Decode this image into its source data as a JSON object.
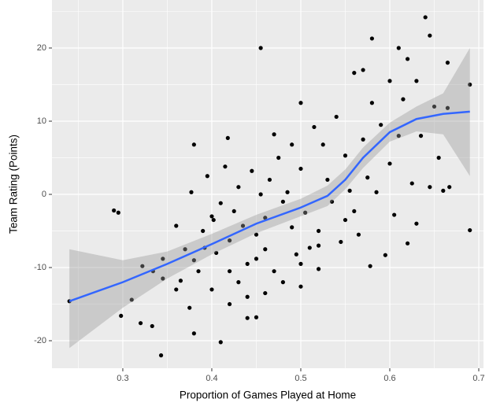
{
  "chart_data": {
    "type": "scatter",
    "xlabel": "Proportion of Games Played at Home",
    "ylabel": "Team Rating (Points)",
    "xlim": [
      0.2204,
      0.7053
    ],
    "ylim": [
      -23.76,
      26.56
    ],
    "xticks": [
      0.3,
      0.4,
      0.5,
      0.6,
      0.7
    ],
    "yticks": [
      -20,
      -10,
      0,
      10,
      20
    ],
    "grid": true,
    "color": "#000000",
    "x": [
      0.24,
      0.29,
      0.295,
      0.298,
      0.31,
      0.32,
      0.322,
      0.333,
      0.334,
      0.343,
      0.345,
      0.345,
      0.36,
      0.36,
      0.365,
      0.37,
      0.375,
      0.377,
      0.38,
      0.38,
      0.385,
      0.39,
      0.392,
      0.395,
      0.4,
      0.402,
      0.405,
      0.41,
      0.41,
      0.415,
      0.418,
      0.42,
      0.42,
      0.425,
      0.43,
      0.43,
      0.435,
      0.44,
      0.44,
      0.445,
      0.45,
      0.45,
      0.45,
      0.455,
      0.455,
      0.46,
      0.46,
      0.465,
      0.47,
      0.47,
      0.475,
      0.48,
      0.48,
      0.485,
      0.49,
      0.49,
      0.495,
      0.5,
      0.5,
      0.5,
      0.505,
      0.51,
      0.515,
      0.52,
      0.52,
      0.525,
      0.53,
      0.535,
      0.54,
      0.545,
      0.55,
      0.55,
      0.555,
      0.56,
      0.56,
      0.565,
      0.57,
      0.57,
      0.575,
      0.578,
      0.58,
      0.58,
      0.585,
      0.59,
      0.595,
      0.6,
      0.6,
      0.605,
      0.61,
      0.61,
      0.615,
      0.62,
      0.62,
      0.625,
      0.63,
      0.63,
      0.635,
      0.64,
      0.645,
      0.645,
      0.65,
      0.655,
      0.66,
      0.665,
      0.665,
      0.667,
      0.69,
      0.69,
      0.5,
      0.44,
      0.46,
      0.42,
      0.52,
      0.38,
      0.4
    ],
    "y": [
      -14.6,
      -2.2,
      -2.5,
      -16.6,
      -14.4,
      -17.6,
      -9.8,
      -18,
      -10.5,
      -22,
      -8.8,
      -11.5,
      -4.3,
      -13,
      -11.8,
      -7.5,
      -15.5,
      0.3,
      -19,
      6.8,
      -10.5,
      -5,
      -7.3,
      2.5,
      -13,
      -3.5,
      -8,
      -20.2,
      -1.2,
      3.8,
      7.7,
      -6.3,
      -10.5,
      -2.3,
      1,
      -12,
      -4.3,
      -9.5,
      -16.9,
      3.2,
      -5.5,
      -8.8,
      -16.8,
      20,
      0,
      -7.5,
      -3.2,
      2,
      8.2,
      -10.5,
      5,
      -1,
      -12,
      0.3,
      6.8,
      -4.5,
      -8.2,
      12.5,
      -12.6,
      3.5,
      -2.5,
      -7.3,
      9.2,
      -5,
      -10.2,
      6.8,
      2,
      -1,
      10.6,
      -6.5,
      5.3,
      -3.5,
      0.5,
      16.6,
      -2.3,
      -5.5,
      17,
      7.5,
      2.3,
      -9.8,
      12.5,
      21.3,
      0.3,
      9.5,
      -8.3,
      15.5,
      4.2,
      -2.8,
      20,
      8,
      13,
      -6.7,
      18.5,
      1.5,
      15.5,
      -4,
      8,
      24.2,
      21.7,
      1,
      12,
      5,
      0.5,
      18,
      11.8,
      1,
      15,
      -4.9,
      -9.5,
      -14,
      -13.5,
      -15,
      -7,
      -9,
      -3
    ],
    "smooth": {
      "color": "#3366ff",
      "band_color": "#999999",
      "x": [
        0.24,
        0.3,
        0.35,
        0.4,
        0.45,
        0.5,
        0.53,
        0.55,
        0.57,
        0.6,
        0.63,
        0.66,
        0.69
      ],
      "y": [
        -14.6,
        -12,
        -9.5,
        -6.8,
        -4,
        -1.8,
        -0.2,
        2,
        5,
        8.5,
        10.3,
        11,
        11.3
      ],
      "lower": [
        -21,
        -15.5,
        -11.5,
        -8.2,
        -5.3,
        -3,
        -1.6,
        0.7,
        3.6,
        7.2,
        8.6,
        8.2,
        2.5
      ],
      "upper": [
        -7.5,
        -9,
        -7.8,
        -5.4,
        -2.8,
        -0.6,
        1.2,
        3.4,
        6.4,
        9.8,
        12,
        13.8,
        20
      ]
    }
  }
}
